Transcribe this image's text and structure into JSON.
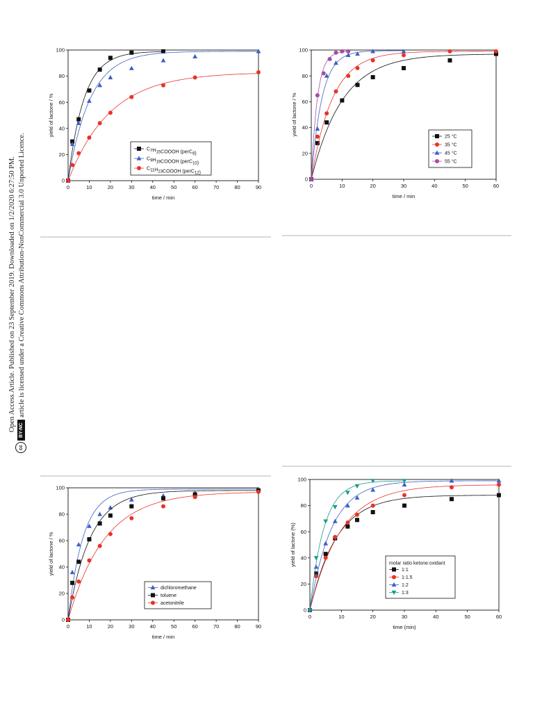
{
  "sidebar": {
    "line1": "Open Access Article. Published on 23 September 2019. Downloaded on 1/2/2020 6:27:50 PM.",
    "line2": "This article is licensed under a Creative Commons Attribution-NonCommercial 3.0 Unported Licence.",
    "badge_cc": "cc",
    "badge_label": "BY-NC"
  },
  "chart_data": [
    {
      "type": "line",
      "xlabel": "time / min",
      "ylabel": "yield of lactone / %",
      "xlim": [
        0,
        90
      ],
      "ylim": [
        0,
        100
      ],
      "xticks": [
        0,
        10,
        20,
        30,
        40,
        50,
        60,
        70,
        80,
        90
      ],
      "yticks": [
        0,
        20,
        40,
        60,
        80,
        100
      ],
      "legend_position": "bottom-right",
      "series": [
        {
          "name": "C7H15COOOH (perC8)",
          "name_parts": [
            [
              "C",
              "n"
            ],
            [
              "7",
              "sub"
            ],
            [
              "H",
              "n"
            ],
            [
              "15",
              "sub"
            ],
            [
              "COOOH (perC",
              "n"
            ],
            [
              "8",
              "sub"
            ],
            [
              ")",
              "n"
            ]
          ],
          "color": "#111111",
          "marker": "square",
          "x": [
            0,
            2,
            5,
            10,
            15,
            20,
            30,
            45
          ],
          "y": [
            0,
            30,
            47,
            69,
            85,
            94,
            98,
            99
          ]
        },
        {
          "name": "C9H19COOOH (perC10)",
          "name_parts": [
            [
              "C",
              "n"
            ],
            [
              "9",
              "sub"
            ],
            [
              "H",
              "n"
            ],
            [
              "19",
              "sub"
            ],
            [
              "COOOH (perC",
              "n"
            ],
            [
              "10",
              "sub"
            ],
            [
              ")",
              "n"
            ]
          ],
          "color": "#3d5fc4",
          "marker": "triangle",
          "x": [
            0,
            2,
            5,
            10,
            15,
            20,
            30,
            45,
            60,
            90
          ],
          "y": [
            0,
            28,
            44,
            61,
            73,
            79,
            86,
            92,
            95,
            99
          ]
        },
        {
          "name": "C11H23COOOH (perC12)",
          "name_parts": [
            [
              "C",
              "n"
            ],
            [
              "11",
              "sub"
            ],
            [
              "H",
              "n"
            ],
            [
              "23",
              "sub"
            ],
            [
              "COOOH (perC",
              "n"
            ],
            [
              "12",
              "sub"
            ],
            [
              ")",
              "n"
            ]
          ],
          "color": "#e8332a",
          "marker": "circle",
          "x": [
            0,
            2,
            5,
            10,
            15,
            20,
            30,
            45,
            60,
            90
          ],
          "y": [
            0,
            12,
            21,
            33,
            44,
            52,
            64,
            73,
            79,
            83
          ]
        }
      ]
    },
    {
      "type": "line",
      "xlabel": "time / min",
      "ylabel": "yield of lactone / %",
      "xlim": [
        0,
        60
      ],
      "ylim": [
        0,
        100
      ],
      "xticks": [
        0,
        10,
        20,
        30,
        40,
        50,
        60
      ],
      "yticks": [
        0,
        20,
        40,
        60,
        80,
        100
      ],
      "legend_position": "bottom-right",
      "series": [
        {
          "name": "25 °C",
          "name_parts": [
            [
              "25 °C",
              "n"
            ]
          ],
          "color": "#111111",
          "marker": "square",
          "x": [
            0,
            2,
            5,
            10,
            15,
            20,
            30,
            45,
            60
          ],
          "y": [
            0,
            28,
            44,
            61,
            73,
            79,
            86,
            92,
            97
          ]
        },
        {
          "name": "35 °C",
          "name_parts": [
            [
              "35 °C",
              "n"
            ]
          ],
          "color": "#e8332a",
          "marker": "circle",
          "x": [
            0,
            2,
            5,
            8,
            12,
            15,
            20,
            30,
            45,
            60
          ],
          "y": [
            0,
            33,
            51,
            68,
            80,
            86,
            92,
            96,
            99,
            99
          ]
        },
        {
          "name": "45 °C",
          "name_parts": [
            [
              "45 °C",
              "n"
            ]
          ],
          "color": "#3d5fc4",
          "marker": "triangle",
          "x": [
            0,
            2,
            5,
            8,
            12,
            15,
            20,
            30
          ],
          "y": [
            0,
            39,
            80,
            90,
            96,
            97,
            99,
            99
          ]
        },
        {
          "name": "55 °C",
          "name_parts": [
            [
              "55 °C",
              "n"
            ]
          ],
          "color": "#a64ca6",
          "marker": "circle",
          "x": [
            0,
            2,
            4,
            6,
            8,
            10,
            12
          ],
          "y": [
            0,
            65,
            82,
            93,
            98,
            99,
            99
          ]
        }
      ]
    },
    {
      "type": "line",
      "xlabel": "time / min",
      "ylabel": "yield of lactone / %",
      "xlim": [
        0,
        90
      ],
      "ylim": [
        0,
        100
      ],
      "xticks": [
        0,
        10,
        20,
        30,
        40,
        50,
        60,
        70,
        80,
        90
      ],
      "yticks": [
        0,
        20,
        40,
        60,
        80,
        100
      ],
      "legend_position": "bottom-right",
      "series": [
        {
          "name": "dichloromethane",
          "name_parts": [
            [
              "dichloromethane",
              "n"
            ]
          ],
          "color": "#3d5fc4",
          "marker": "triangle",
          "x": [
            0,
            2,
            5,
            10,
            15,
            20,
            30,
            45,
            60,
            90
          ],
          "y": [
            0,
            36,
            57,
            71,
            80,
            85,
            91,
            94,
            96,
            99
          ]
        },
        {
          "name": "toluene",
          "name_parts": [
            [
              "toluene",
              "n"
            ]
          ],
          "color": "#111111",
          "marker": "square",
          "x": [
            0,
            2,
            5,
            10,
            15,
            20,
            30,
            45,
            60,
            90
          ],
          "y": [
            0,
            28,
            44,
            61,
            73,
            79,
            86,
            92,
            95,
            98
          ]
        },
        {
          "name": "acetonitrile",
          "name_parts": [
            [
              "acetonitrile",
              "n"
            ]
          ],
          "color": "#e8332a",
          "marker": "circle",
          "x": [
            0,
            2,
            5,
            10,
            15,
            20,
            30,
            45,
            60,
            90
          ],
          "y": [
            0,
            17,
            29,
            45,
            56,
            65,
            77,
            86,
            93,
            97
          ]
        }
      ]
    },
    {
      "type": "line",
      "xlabel": "time (min)",
      "ylabel": "yield of lactone (%)",
      "xlim": [
        0,
        60
      ],
      "ylim": [
        0,
        100
      ],
      "xticks": [
        0,
        10,
        20,
        30,
        40,
        50,
        60
      ],
      "yticks": [
        0,
        20,
        40,
        60,
        80,
        100
      ],
      "legend_title": "molar ratio ketone:oxidant",
      "legend_position": "bottom-right",
      "series": [
        {
          "name": "1:1",
          "name_parts": [
            [
              "1:1",
              "n"
            ]
          ],
          "color": "#111111",
          "marker": "square",
          "x": [
            0,
            2,
            5,
            8,
            12,
            15,
            20,
            30,
            45,
            60
          ],
          "y": [
            0,
            28,
            43,
            55,
            64,
            69,
            75,
            80,
            85,
            88
          ]
        },
        {
          "name": "1:1.5",
          "name_parts": [
            [
              "1:1.5",
              "n"
            ]
          ],
          "color": "#e8332a",
          "marker": "circle",
          "x": [
            0,
            2,
            5,
            8,
            12,
            15,
            20,
            30,
            45,
            60
          ],
          "y": [
            0,
            26,
            40,
            56,
            67,
            73,
            80,
            88,
            94,
            96
          ]
        },
        {
          "name": "1:2",
          "name_parts": [
            [
              "1:2",
              "n"
            ]
          ],
          "color": "#3d5fc4",
          "marker": "triangle",
          "x": [
            0,
            2,
            5,
            8,
            12,
            15,
            20,
            30,
            45,
            60
          ],
          "y": [
            0,
            33,
            51,
            68,
            80,
            86,
            92,
            96,
            99,
            99
          ]
        },
        {
          "name": "1:3",
          "name_parts": [
            [
              "1:3",
              "n"
            ]
          ],
          "color": "#1a9c8c",
          "marker": "triangle-down",
          "x": [
            0,
            2,
            5,
            8,
            12,
            15,
            20,
            30
          ],
          "y": [
            0,
            40,
            68,
            79,
            90,
            95,
            99,
            99
          ]
        }
      ]
    }
  ]
}
